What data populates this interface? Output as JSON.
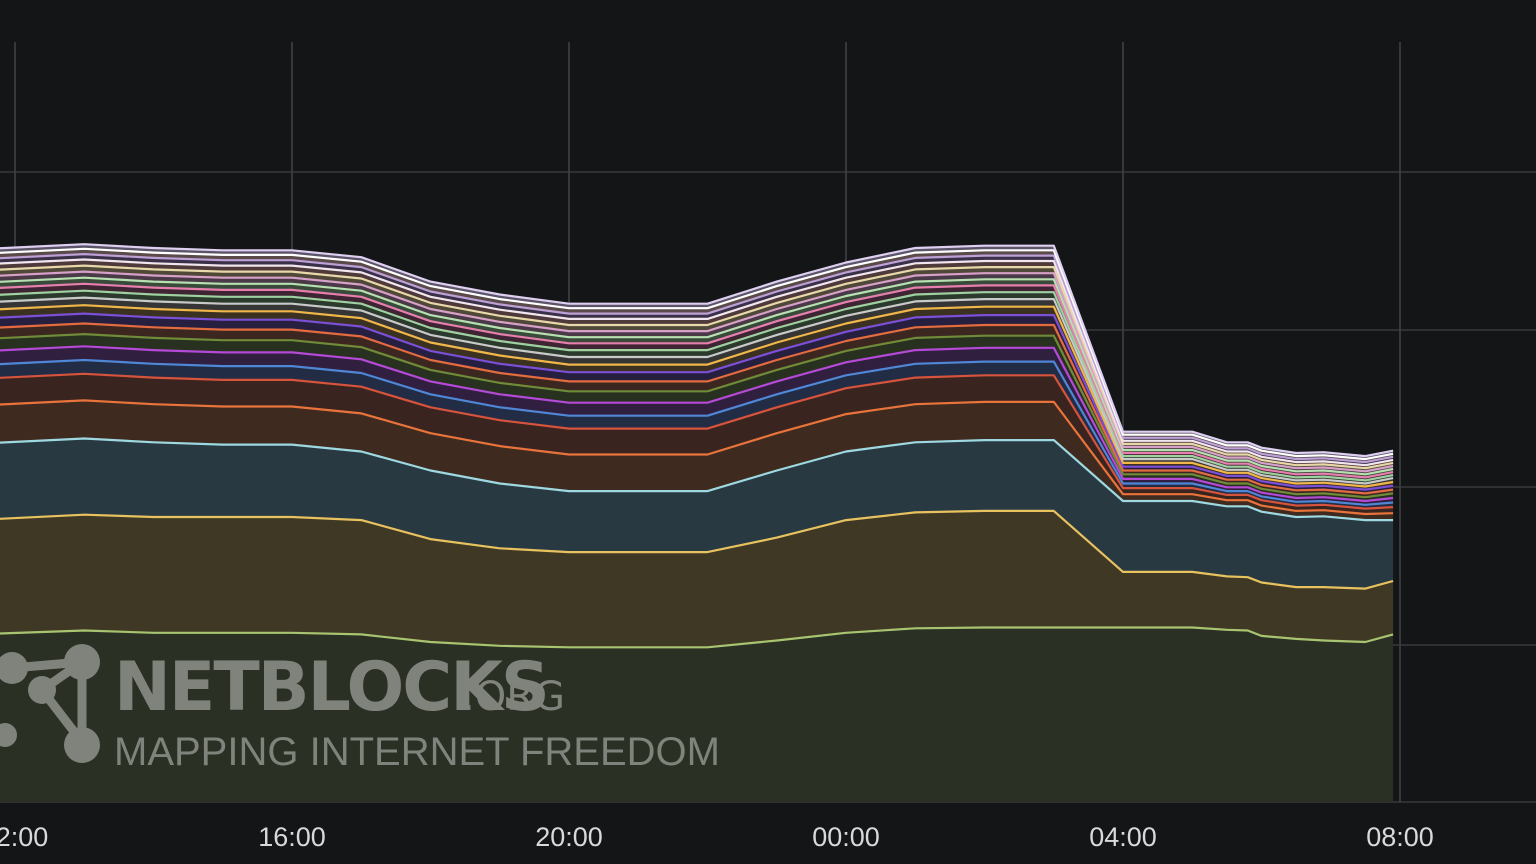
{
  "chart_data": {
    "type": "area",
    "stacked": true,
    "grid": true,
    "x_ticks": [
      "2:00",
      "16:00",
      "20:00",
      "00:00",
      "04:00",
      "08:00"
    ],
    "x_hours": [
      -0.6,
      1,
      2,
      3,
      4,
      5,
      6,
      7,
      8,
      9,
      10,
      11,
      12,
      13,
      14,
      15,
      16,
      17,
      17.5,
      17.8,
      18,
      18.5,
      18.9,
      19.5,
      19.9
    ],
    "series": [
      {
        "color": "#a8c470",
        "fill": "#2a3024",
        "values": [
          0.22,
          0.225,
          0.222,
          0.222,
          0.222,
          0.22,
          0.21,
          0.205,
          0.203,
          0.203,
          0.203,
          0.212,
          0.222,
          0.228,
          0.229,
          0.229,
          0.229,
          0.229,
          0.226,
          0.225,
          0.218,
          0.214,
          0.212,
          0.21,
          0.22
        ]
      },
      {
        "color": "#e7c25f",
        "fill": "#3f3825",
        "values": [
          0.15,
          0.152,
          0.152,
          0.152,
          0.152,
          0.15,
          0.135,
          0.128,
          0.125,
          0.125,
          0.125,
          0.135,
          0.148,
          0.152,
          0.153,
          0.153,
          0.073,
          0.073,
          0.07,
          0.07,
          0.07,
          0.068,
          0.07,
          0.07,
          0.07
        ]
      },
      {
        "color": "#9ed8e0",
        "fill": "#293942",
        "values": [
          0.1,
          0.1,
          0.098,
          0.095,
          0.095,
          0.09,
          0.09,
          0.085,
          0.08,
          0.08,
          0.08,
          0.088,
          0.09,
          0.092,
          0.093,
          0.093,
          0.093,
          0.093,
          0.092,
          0.093,
          0.093,
          0.092,
          0.093,
          0.09,
          0.08
        ]
      },
      {
        "color": "#e8743b",
        "fill": "#3f2a20",
        "values": [
          0.05,
          0.05,
          0.05,
          0.05,
          0.05,
          0.05,
          0.049,
          0.049,
          0.048,
          0.048,
          0.048,
          0.049,
          0.049,
          0.05,
          0.05,
          0.05,
          0.009,
          0.009,
          0.008,
          0.008,
          0.008,
          0.008,
          0.008,
          0.008,
          0.009
        ]
      },
      {
        "color": "#d6533c",
        "fill": "#3a2420",
        "values": [
          0.035,
          0.035,
          0.035,
          0.035,
          0.035,
          0.035,
          0.034,
          0.034,
          0.034,
          0.034,
          0.034,
          0.034,
          0.034,
          0.035,
          0.035,
          0.035,
          0.008,
          0.008,
          0.007,
          0.007,
          0.007,
          0.007,
          0.007,
          0.007,
          0.008
        ]
      },
      {
        "color": "#4f86d6",
        "fill": "#222c45",
        "values": [
          0.018,
          0.018,
          0.018,
          0.018,
          0.018,
          0.018,
          0.017,
          0.017,
          0.017,
          0.017,
          0.017,
          0.017,
          0.017,
          0.018,
          0.018,
          0.018,
          0.006,
          0.006,
          0.005,
          0.005,
          0.005,
          0.005,
          0.005,
          0.005,
          0.006
        ]
      },
      {
        "color": "#b44ad6",
        "fill": "#301f3f",
        "values": [
          0.018,
          0.018,
          0.018,
          0.018,
          0.018,
          0.018,
          0.017,
          0.017,
          0.017,
          0.017,
          0.017,
          0.017,
          0.017,
          0.018,
          0.018,
          0.018,
          0.006,
          0.006,
          0.005,
          0.005,
          0.005,
          0.005,
          0.005,
          0.005,
          0.006
        ]
      },
      {
        "color": "#6f8a38",
        "fill": "#283020",
        "values": [
          0.016,
          0.016,
          0.016,
          0.016,
          0.016,
          0.016,
          0.015,
          0.015,
          0.015,
          0.015,
          0.015,
          0.015,
          0.015,
          0.016,
          0.016,
          0.016,
          0.006,
          0.006,
          0.005,
          0.005,
          0.005,
          0.005,
          0.005,
          0.005,
          0.006
        ]
      },
      {
        "color": "#e26b3f",
        "fill": "#3b2620",
        "values": [
          0.014,
          0.014,
          0.014,
          0.014,
          0.014,
          0.014,
          0.013,
          0.013,
          0.013,
          0.013,
          0.013,
          0.013,
          0.013,
          0.014,
          0.014,
          0.014,
          0.005,
          0.005,
          0.005,
          0.005,
          0.005,
          0.005,
          0.005,
          0.005,
          0.005
        ]
      },
      {
        "color": "#7b4fd6",
        "fill": "#261f3f",
        "values": [
          0.013,
          0.013,
          0.013,
          0.013,
          0.013,
          0.013,
          0.012,
          0.012,
          0.012,
          0.012,
          0.012,
          0.012,
          0.012,
          0.013,
          0.013,
          0.013,
          0.005,
          0.005,
          0.005,
          0.005,
          0.005,
          0.005,
          0.005,
          0.005,
          0.005
        ]
      },
      {
        "color": "#f0b64a",
        "fill": "#3b3120",
        "values": [
          0.011,
          0.011,
          0.011,
          0.011,
          0.011,
          0.011,
          0.011,
          0.011,
          0.01,
          0.01,
          0.01,
          0.011,
          0.011,
          0.011,
          0.011,
          0.011,
          0.005,
          0.005,
          0.004,
          0.004,
          0.004,
          0.004,
          0.004,
          0.004,
          0.005
        ]
      },
      {
        "color": "#c9c9c9",
        "fill": "#353535",
        "values": [
          0.01,
          0.01,
          0.01,
          0.01,
          0.01,
          0.01,
          0.01,
          0.01,
          0.01,
          0.01,
          0.01,
          0.01,
          0.01,
          0.01,
          0.01,
          0.01,
          0.005,
          0.005,
          0.004,
          0.004,
          0.004,
          0.004,
          0.004,
          0.004,
          0.005
        ]
      },
      {
        "color": "#9fd0a0",
        "fill": "#2b3a2c",
        "values": [
          0.009,
          0.009,
          0.009,
          0.009,
          0.009,
          0.009,
          0.009,
          0.009,
          0.009,
          0.009,
          0.009,
          0.009,
          0.009,
          0.009,
          0.009,
          0.009,
          0.004,
          0.004,
          0.004,
          0.004,
          0.004,
          0.004,
          0.004,
          0.004,
          0.004
        ]
      },
      {
        "color": "#e67fae",
        "fill": "#3f2533",
        "values": [
          0.009,
          0.009,
          0.009,
          0.009,
          0.009,
          0.009,
          0.009,
          0.009,
          0.009,
          0.009,
          0.009,
          0.009,
          0.009,
          0.009,
          0.009,
          0.009,
          0.004,
          0.004,
          0.004,
          0.004,
          0.004,
          0.004,
          0.004,
          0.004,
          0.004
        ]
      },
      {
        "color": "#b6e0b0",
        "fill": "#3a4a3a",
        "values": [
          0.008,
          0.008,
          0.008,
          0.008,
          0.008,
          0.008,
          0.008,
          0.008,
          0.008,
          0.008,
          0.008,
          0.008,
          0.008,
          0.008,
          0.008,
          0.008,
          0.004,
          0.004,
          0.004,
          0.004,
          0.004,
          0.004,
          0.004,
          0.004,
          0.004
        ]
      },
      {
        "color": "#d7a0c8",
        "fill": "#4a3a48",
        "values": [
          0.008,
          0.008,
          0.008,
          0.008,
          0.008,
          0.008,
          0.008,
          0.008,
          0.008,
          0.008,
          0.008,
          0.008,
          0.008,
          0.008,
          0.008,
          0.008,
          0.004,
          0.004,
          0.004,
          0.004,
          0.004,
          0.004,
          0.004,
          0.004,
          0.004
        ]
      },
      {
        "color": "#e8d7a8",
        "fill": "#4f4838",
        "values": [
          0.008,
          0.008,
          0.008,
          0.008,
          0.008,
          0.008,
          0.008,
          0.008,
          0.008,
          0.008,
          0.008,
          0.008,
          0.008,
          0.008,
          0.008,
          0.008,
          0.004,
          0.004,
          0.004,
          0.004,
          0.004,
          0.004,
          0.004,
          0.004,
          0.004
        ]
      },
      {
        "color": "#f2e6ee",
        "fill": "#4e3a3a",
        "values": [
          0.008,
          0.008,
          0.008,
          0.008,
          0.008,
          0.008,
          0.008,
          0.008,
          0.008,
          0.008,
          0.008,
          0.008,
          0.008,
          0.008,
          0.008,
          0.008,
          0.004,
          0.004,
          0.004,
          0.004,
          0.004,
          0.004,
          0.004,
          0.004,
          0.004
        ]
      },
      {
        "color": "#bca0d6",
        "fill": "#3a3048",
        "values": [
          0.007,
          0.007,
          0.007,
          0.007,
          0.007,
          0.007,
          0.007,
          0.007,
          0.007,
          0.007,
          0.007,
          0.007,
          0.007,
          0.007,
          0.007,
          0.007,
          0.004,
          0.004,
          0.004,
          0.004,
          0.004,
          0.004,
          0.004,
          0.004,
          0.004
        ]
      },
      {
        "color": "#ffffff",
        "fill": "#5a4a4a",
        "values": [
          0.007,
          0.007,
          0.007,
          0.007,
          0.007,
          0.007,
          0.007,
          0.007,
          0.007,
          0.007,
          0.007,
          0.007,
          0.007,
          0.007,
          0.007,
          0.007,
          0.004,
          0.004,
          0.004,
          0.004,
          0.004,
          0.004,
          0.004,
          0.004,
          0.004
        ]
      },
      {
        "color": "#ded0f0",
        "fill": "#5c5468",
        "values": [
          0.006,
          0.006,
          0.006,
          0.006,
          0.006,
          0.006,
          0.006,
          0.006,
          0.006,
          0.006,
          0.006,
          0.006,
          0.006,
          0.006,
          0.006,
          0.006,
          0.004,
          0.004,
          0.004,
          0.004,
          0.004,
          0.004,
          0.004,
          0.004,
          0.004
        ]
      }
    ]
  },
  "watermark": {
    "name": "NETBLOCKS",
    "tld": ".ORG",
    "tagline": "MAPPING INTERNET FREEDOM"
  }
}
